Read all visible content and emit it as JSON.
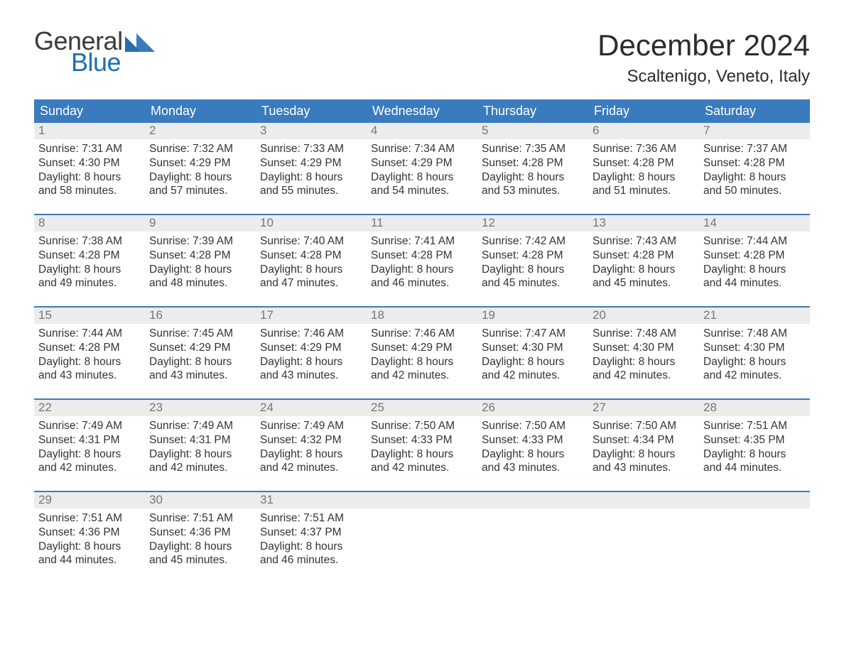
{
  "brand": {
    "text_general": "General",
    "text_blue": "Blue",
    "brand_color": "#1f6fb2"
  },
  "title": "December 2024",
  "location": "Scaltenigo, Veneto, Italy",
  "colors": {
    "header_bg": "#3a7bbf",
    "header_text": "#ffffff",
    "daynum_bg": "#ececec",
    "daynum_text": "#777777",
    "body_text": "#333333",
    "rule": "#3a7bbf",
    "page_bg": "#ffffff"
  },
  "typography": {
    "title_fontsize": 42,
    "location_fontsize": 24,
    "dayheader_fontsize": 18,
    "body_fontsize": 15.5,
    "font_family": "Arial"
  },
  "day_headers": [
    "Sunday",
    "Monday",
    "Tuesday",
    "Wednesday",
    "Thursday",
    "Friday",
    "Saturday"
  ],
  "labels": {
    "sunrise": "Sunrise: ",
    "sunset": "Sunset: ",
    "daylight": "Daylight: "
  },
  "weeks": [
    [
      {
        "n": "1",
        "sunrise": "7:31 AM",
        "sunset": "4:30 PM",
        "daylight": "8 hours and 58 minutes."
      },
      {
        "n": "2",
        "sunrise": "7:32 AM",
        "sunset": "4:29 PM",
        "daylight": "8 hours and 57 minutes."
      },
      {
        "n": "3",
        "sunrise": "7:33 AM",
        "sunset": "4:29 PM",
        "daylight": "8 hours and 55 minutes."
      },
      {
        "n": "4",
        "sunrise": "7:34 AM",
        "sunset": "4:29 PM",
        "daylight": "8 hours and 54 minutes."
      },
      {
        "n": "5",
        "sunrise": "7:35 AM",
        "sunset": "4:28 PM",
        "daylight": "8 hours and 53 minutes."
      },
      {
        "n": "6",
        "sunrise": "7:36 AM",
        "sunset": "4:28 PM",
        "daylight": "8 hours and 51 minutes."
      },
      {
        "n": "7",
        "sunrise": "7:37 AM",
        "sunset": "4:28 PM",
        "daylight": "8 hours and 50 minutes."
      }
    ],
    [
      {
        "n": "8",
        "sunrise": "7:38 AM",
        "sunset": "4:28 PM",
        "daylight": "8 hours and 49 minutes."
      },
      {
        "n": "9",
        "sunrise": "7:39 AM",
        "sunset": "4:28 PM",
        "daylight": "8 hours and 48 minutes."
      },
      {
        "n": "10",
        "sunrise": "7:40 AM",
        "sunset": "4:28 PM",
        "daylight": "8 hours and 47 minutes."
      },
      {
        "n": "11",
        "sunrise": "7:41 AM",
        "sunset": "4:28 PM",
        "daylight": "8 hours and 46 minutes."
      },
      {
        "n": "12",
        "sunrise": "7:42 AM",
        "sunset": "4:28 PM",
        "daylight": "8 hours and 45 minutes."
      },
      {
        "n": "13",
        "sunrise": "7:43 AM",
        "sunset": "4:28 PM",
        "daylight": "8 hours and 45 minutes."
      },
      {
        "n": "14",
        "sunrise": "7:44 AM",
        "sunset": "4:28 PM",
        "daylight": "8 hours and 44 minutes."
      }
    ],
    [
      {
        "n": "15",
        "sunrise": "7:44 AM",
        "sunset": "4:28 PM",
        "daylight": "8 hours and 43 minutes."
      },
      {
        "n": "16",
        "sunrise": "7:45 AM",
        "sunset": "4:29 PM",
        "daylight": "8 hours and 43 minutes."
      },
      {
        "n": "17",
        "sunrise": "7:46 AM",
        "sunset": "4:29 PM",
        "daylight": "8 hours and 43 minutes."
      },
      {
        "n": "18",
        "sunrise": "7:46 AM",
        "sunset": "4:29 PM",
        "daylight": "8 hours and 42 minutes."
      },
      {
        "n": "19",
        "sunrise": "7:47 AM",
        "sunset": "4:30 PM",
        "daylight": "8 hours and 42 minutes."
      },
      {
        "n": "20",
        "sunrise": "7:48 AM",
        "sunset": "4:30 PM",
        "daylight": "8 hours and 42 minutes."
      },
      {
        "n": "21",
        "sunrise": "7:48 AM",
        "sunset": "4:30 PM",
        "daylight": "8 hours and 42 minutes."
      }
    ],
    [
      {
        "n": "22",
        "sunrise": "7:49 AM",
        "sunset": "4:31 PM",
        "daylight": "8 hours and 42 minutes."
      },
      {
        "n": "23",
        "sunrise": "7:49 AM",
        "sunset": "4:31 PM",
        "daylight": "8 hours and 42 minutes."
      },
      {
        "n": "24",
        "sunrise": "7:49 AM",
        "sunset": "4:32 PM",
        "daylight": "8 hours and 42 minutes."
      },
      {
        "n": "25",
        "sunrise": "7:50 AM",
        "sunset": "4:33 PM",
        "daylight": "8 hours and 42 minutes."
      },
      {
        "n": "26",
        "sunrise": "7:50 AM",
        "sunset": "4:33 PM",
        "daylight": "8 hours and 43 minutes."
      },
      {
        "n": "27",
        "sunrise": "7:50 AM",
        "sunset": "4:34 PM",
        "daylight": "8 hours and 43 minutes."
      },
      {
        "n": "28",
        "sunrise": "7:51 AM",
        "sunset": "4:35 PM",
        "daylight": "8 hours and 44 minutes."
      }
    ],
    [
      {
        "n": "29",
        "sunrise": "7:51 AM",
        "sunset": "4:36 PM",
        "daylight": "8 hours and 44 minutes."
      },
      {
        "n": "30",
        "sunrise": "7:51 AM",
        "sunset": "4:36 PM",
        "daylight": "8 hours and 45 minutes."
      },
      {
        "n": "31",
        "sunrise": "7:51 AM",
        "sunset": "4:37 PM",
        "daylight": "8 hours and 46 minutes."
      },
      null,
      null,
      null,
      null
    ]
  ]
}
